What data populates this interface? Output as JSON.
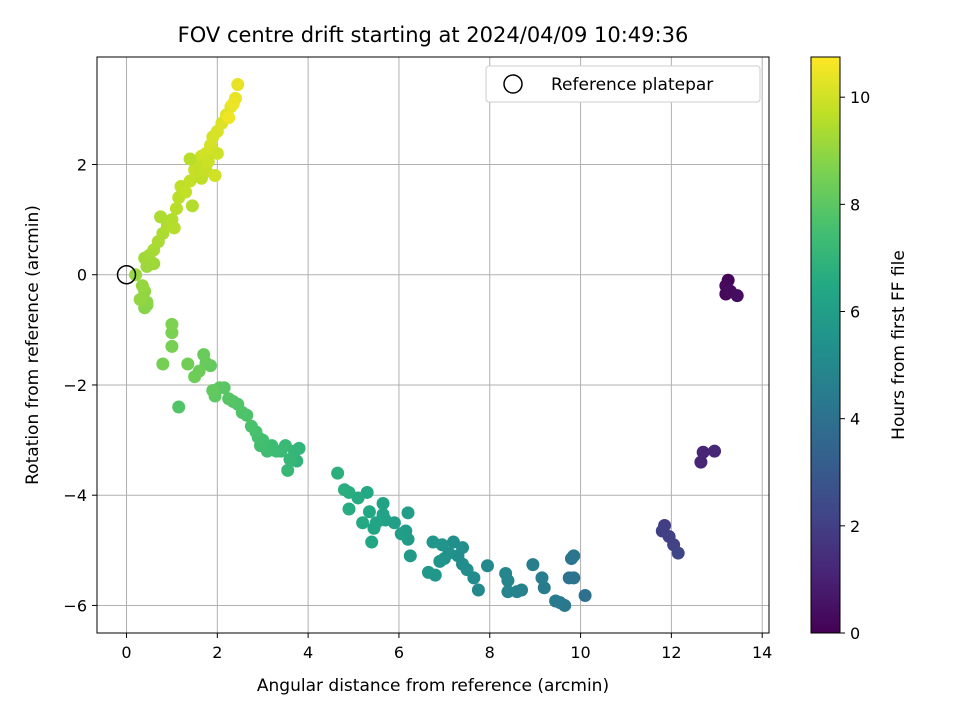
{
  "chart_data": {
    "type": "scatter",
    "title": "FOV centre drift starting at 2024/04/09 10:49:36",
    "xlabel": "Angular distance from reference (arcmin)",
    "ylabel": "Rotation from reference (arcmin)",
    "xlim": [
      -0.65,
      14.15
    ],
    "ylim": [
      -6.5,
      3.95
    ],
    "xticks": [
      0,
      2,
      4,
      6,
      8,
      10,
      12,
      14
    ],
    "yticks": [
      -6,
      -4,
      -2,
      0,
      2
    ],
    "grid": true,
    "legend": {
      "position": "top-right",
      "entries": [
        "Reference platepar"
      ]
    },
    "reference_point": {
      "x": 0,
      "y": 0
    },
    "colorbar": {
      "label": "Hours from first FF file",
      "range": [
        0,
        10.75
      ],
      "ticks": [
        0,
        2,
        4,
        6,
        8,
        10
      ],
      "colormap": "viridis"
    },
    "points": [
      [
        13.25,
        -0.1,
        0.1
      ],
      [
        13.2,
        -0.2,
        0.2
      ],
      [
        13.2,
        -0.35,
        0.2
      ],
      [
        13.3,
        -0.3,
        0.3
      ],
      [
        13.45,
        -0.38,
        0.35
      ],
      [
        12.7,
        -3.22,
        1.1
      ],
      [
        12.65,
        -3.4,
        1.15
      ],
      [
        12.95,
        -3.2,
        1.2
      ],
      [
        11.85,
        -4.55,
        1.9
      ],
      [
        11.8,
        -4.65,
        2.0
      ],
      [
        11.95,
        -4.75,
        2.05
      ],
      [
        12.05,
        -4.9,
        2.1
      ],
      [
        12.15,
        -5.05,
        2.2
      ],
      [
        10.1,
        -5.82,
        4.0
      ],
      [
        9.75,
        -5.5,
        4.05
      ],
      [
        9.85,
        -5.5,
        4.1
      ],
      [
        9.8,
        -5.15,
        4.15
      ],
      [
        9.85,
        -5.1,
        4.2
      ],
      [
        9.65,
        -6.0,
        4.3
      ],
      [
        9.55,
        -5.95,
        4.35
      ],
      [
        9.45,
        -5.92,
        4.4
      ],
      [
        9.2,
        -5.68,
        4.45
      ],
      [
        9.15,
        -5.5,
        4.5
      ],
      [
        8.95,
        -5.26,
        4.6
      ],
      [
        8.7,
        -5.72,
        4.7
      ],
      [
        8.6,
        -5.75,
        4.75
      ],
      [
        8.4,
        -5.75,
        4.8
      ],
      [
        8.4,
        -5.55,
        4.85
      ],
      [
        8.35,
        -5.42,
        4.9
      ],
      [
        7.95,
        -5.28,
        5.0
      ],
      [
        7.75,
        -5.72,
        5.05
      ],
      [
        7.65,
        -5.5,
        5.1
      ],
      [
        7.5,
        -5.35,
        5.15
      ],
      [
        7.4,
        -5.25,
        5.2
      ],
      [
        7.3,
        -5.1,
        5.25
      ],
      [
        7.4,
        -4.95,
        5.3
      ],
      [
        7.2,
        -4.85,
        5.35
      ],
      [
        7.1,
        -5.05,
        5.4
      ],
      [
        7.0,
        -5.15,
        5.45
      ],
      [
        6.9,
        -5.2,
        5.5
      ],
      [
        6.95,
        -4.9,
        5.55
      ],
      [
        6.75,
        -4.85,
        5.6
      ],
      [
        6.8,
        -5.45,
        5.65
      ],
      [
        6.65,
        -5.4,
        5.7
      ],
      [
        6.25,
        -5.1,
        5.8
      ],
      [
        6.2,
        -4.8,
        5.85
      ],
      [
        6.15,
        -4.65,
        5.9
      ],
      [
        6.2,
        -4.32,
        5.95
      ],
      [
        6.05,
        -4.7,
        6.0
      ],
      [
        5.9,
        -4.5,
        6.05
      ],
      [
        5.7,
        -4.45,
        6.1
      ],
      [
        5.65,
        -4.35,
        6.15
      ],
      [
        5.65,
        -4.15,
        6.2
      ],
      [
        5.5,
        -4.5,
        6.25
      ],
      [
        5.45,
        -4.6,
        6.3
      ],
      [
        5.4,
        -4.85,
        6.35
      ],
      [
        5.35,
        -4.3,
        6.4
      ],
      [
        5.3,
        -3.95,
        6.45
      ],
      [
        5.2,
        -4.5,
        6.5
      ],
      [
        5.1,
        -4.05,
        6.55
      ],
      [
        4.9,
        -4.25,
        6.6
      ],
      [
        4.9,
        -3.95,
        6.65
      ],
      [
        4.8,
        -3.9,
        6.7
      ],
      [
        4.65,
        -3.6,
        6.8
      ],
      [
        3.75,
        -3.38,
        6.95
      ],
      [
        3.8,
        -3.15,
        7.0
      ],
      [
        3.7,
        -3.2,
        7.05
      ],
      [
        3.6,
        -3.35,
        7.1
      ],
      [
        3.55,
        -3.55,
        7.15
      ],
      [
        3.5,
        -3.1,
        7.2
      ],
      [
        3.4,
        -3.2,
        7.25
      ],
      [
        3.3,
        -3.2,
        7.3
      ],
      [
        3.2,
        -3.1,
        7.35
      ],
      [
        3.1,
        -3.2,
        7.4
      ],
      [
        3.0,
        -3.0,
        7.45
      ],
      [
        2.95,
        -3.1,
        7.5
      ],
      [
        2.9,
        -2.95,
        7.55
      ],
      [
        2.85,
        -2.85,
        7.6
      ],
      [
        2.75,
        -2.75,
        7.65
      ],
      [
        2.65,
        -2.55,
        7.7
      ],
      [
        2.55,
        -2.5,
        7.75
      ],
      [
        2.45,
        -2.35,
        7.8
      ],
      [
        2.35,
        -2.3,
        7.85
      ],
      [
        2.25,
        -2.25,
        7.9
      ],
      [
        2.15,
        -2.05,
        7.95
      ],
      [
        2.05,
        -2.05,
        8.0
      ],
      [
        1.95,
        -2.2,
        8.05
      ],
      [
        1.9,
        -2.1,
        8.1
      ],
      [
        1.85,
        -1.65,
        8.15
      ],
      [
        1.75,
        -1.6,
        8.2
      ],
      [
        1.7,
        -1.45,
        8.25
      ],
      [
        1.6,
        -1.75,
        8.3
      ],
      [
        1.5,
        -1.85,
        8.35
      ],
      [
        1.35,
        -1.62,
        8.4
      ],
      [
        1.15,
        -2.4,
        7.8
      ],
      [
        0.8,
        -1.62,
        8.5
      ],
      [
        1.0,
        -1.3,
        8.55
      ],
      [
        1.0,
        -1.05,
        8.6
      ],
      [
        1.0,
        -0.9,
        8.65
      ],
      [
        0.45,
        -0.55,
        8.75
      ],
      [
        0.4,
        -0.6,
        8.8
      ],
      [
        0.45,
        -0.5,
        8.85
      ],
      [
        0.35,
        -0.45,
        8.9
      ],
      [
        0.4,
        -0.3,
        8.95
      ],
      [
        0.3,
        -0.45,
        9.0
      ],
      [
        0.35,
        -0.2,
        9.05
      ],
      [
        0.2,
        0.0,
        9.1
      ],
      [
        0.45,
        0.15,
        9.15
      ],
      [
        0.4,
        0.3,
        9.2
      ],
      [
        0.5,
        0.35,
        9.25
      ],
      [
        0.6,
        0.45,
        9.3
      ],
      [
        0.7,
        0.6,
        9.35
      ],
      [
        0.8,
        0.75,
        9.4
      ],
      [
        0.9,
        0.9,
        9.45
      ],
      [
        1.0,
        1.0,
        9.5
      ],
      [
        1.05,
        0.85,
        9.55
      ],
      [
        1.1,
        1.2,
        9.6
      ],
      [
        1.15,
        1.4,
        9.65
      ],
      [
        1.2,
        1.6,
        9.7
      ],
      [
        1.3,
        1.5,
        9.75
      ],
      [
        1.4,
        1.7,
        9.8
      ],
      [
        1.5,
        1.9,
        9.85
      ],
      [
        1.55,
        2.0,
        9.9
      ],
      [
        1.65,
        2.15,
        9.95
      ],
      [
        1.75,
        2.2,
        10.0
      ],
      [
        1.85,
        2.35,
        10.05
      ],
      [
        1.9,
        2.5,
        10.1
      ],
      [
        2.0,
        2.6,
        10.15
      ],
      [
        2.1,
        2.75,
        10.2
      ],
      [
        2.2,
        2.9,
        10.25
      ],
      [
        2.3,
        3.05,
        10.3
      ],
      [
        2.4,
        3.2,
        10.35
      ],
      [
        2.45,
        3.45,
        10.4
      ],
      [
        2.35,
        3.1,
        10.45
      ],
      [
        2.25,
        2.85,
        10.5
      ],
      [
        1.65,
        1.75,
        9.7
      ],
      [
        1.7,
        1.85,
        9.75
      ],
      [
        1.6,
        1.95,
        9.8
      ],
      [
        1.75,
        1.9,
        9.85
      ],
      [
        1.8,
        2.05,
        9.9
      ],
      [
        2.0,
        2.2,
        9.95
      ],
      [
        1.95,
        1.8,
        10.0
      ],
      [
        1.4,
        2.1,
        9.6
      ],
      [
        1.45,
        1.25,
        9.5
      ],
      [
        0.75,
        1.05,
        9.4
      ],
      [
        0.6,
        0.2,
        9.2
      ]
    ]
  }
}
